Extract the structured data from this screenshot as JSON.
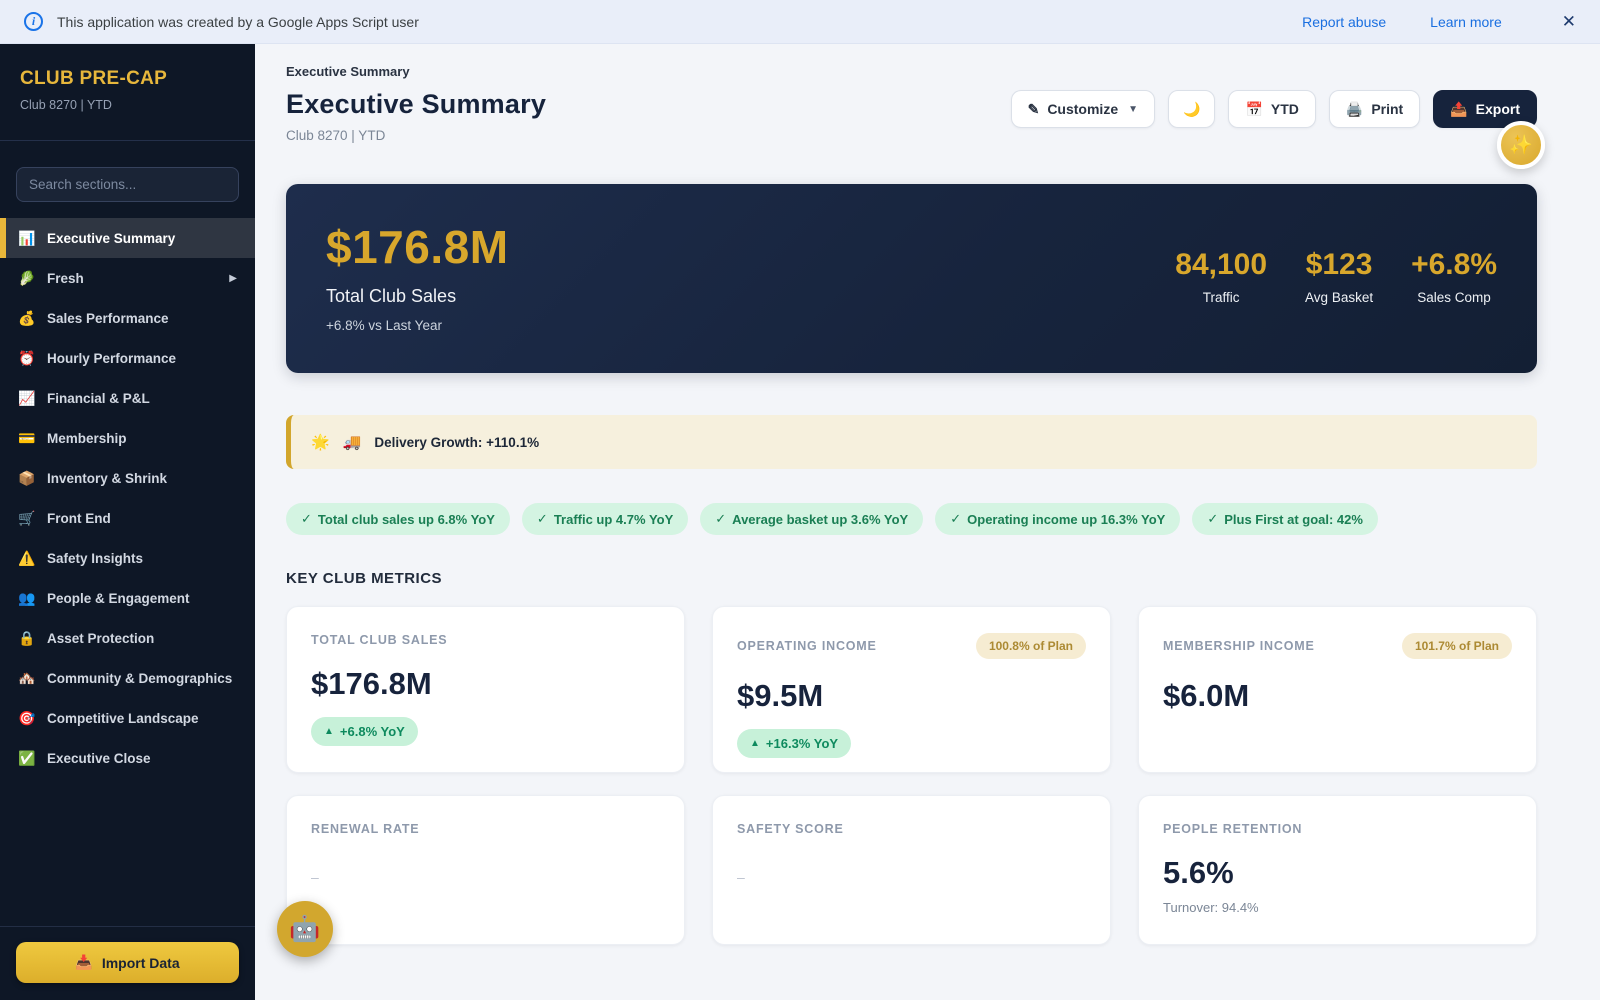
{
  "banner": {
    "info_glyph": "i",
    "text": "This application was created by a Google Apps Script user",
    "report_abuse": "Report abuse",
    "learn_more": "Learn more",
    "close_glyph": "✕"
  },
  "sidebar": {
    "title": "CLUB PRE-CAP",
    "subtitle": "Club 8270 | YTD",
    "search_placeholder": "Search sections...",
    "items": [
      {
        "icon": "📊",
        "label": "Executive Summary",
        "active": true
      },
      {
        "icon": "🥬",
        "label": "Fresh",
        "has_submenu": true,
        "caret": "▶"
      },
      {
        "icon": "💰",
        "label": "Sales Performance"
      },
      {
        "icon": "⏰",
        "label": "Hourly Performance"
      },
      {
        "icon": "📈",
        "label": "Financial & P&L"
      },
      {
        "icon": "💳",
        "label": "Membership"
      },
      {
        "icon": "📦",
        "label": "Inventory & Shrink"
      },
      {
        "icon": "🛒",
        "label": "Front End"
      },
      {
        "icon": "⚠️",
        "label": "Safety Insights"
      },
      {
        "icon": "👥",
        "label": "People & Engagement"
      },
      {
        "icon": "🔒",
        "label": "Asset Protection"
      },
      {
        "icon": "🏘️",
        "label": "Community & Demographics"
      },
      {
        "icon": "🎯",
        "label": "Competitive Landscape"
      },
      {
        "icon": "✅",
        "label": "Executive Close"
      }
    ],
    "import_button": {
      "icon": "📥",
      "label": "Import Data"
    }
  },
  "header": {
    "breadcrumb": "Executive Summary",
    "title": "Executive Summary",
    "subtitle": "Club 8270 | YTD",
    "customize": {
      "icon": "✎",
      "label": "Customize",
      "caret": "▼"
    },
    "theme_button": {
      "icon": "🌙"
    },
    "period_button": {
      "icon": "📅",
      "label": "YTD"
    },
    "print_button": {
      "icon": "🖨️",
      "label": "Print"
    },
    "export_button": {
      "icon": "📤",
      "label": "Export"
    },
    "sparkle_fab_icon": "✨"
  },
  "hero": {
    "value": "$176.8M",
    "label": "Total Club Sales",
    "sub": "+6.8% vs Last Year",
    "stats": [
      {
        "value": "84,100",
        "label": "Traffic"
      },
      {
        "value": "$123",
        "label": "Avg Basket"
      },
      {
        "value": "+6.8%",
        "label": "Sales Comp"
      }
    ]
  },
  "alert": {
    "star_icon": "🌟",
    "truck_icon": "🚚",
    "text": "Delivery Growth: +110.1%"
  },
  "highlights": {
    "check_glyph": "✓",
    "items": [
      "Total club sales up 6.8% YoY",
      "Traffic up 4.7% YoY",
      "Average basket up 3.6% YoY",
      "Operating income up 16.3% YoY",
      "Plus First at goal: 42%"
    ]
  },
  "metrics": {
    "section_title": "KEY CLUB METRICS",
    "delta_arrow": "▲",
    "cards": [
      {
        "label": "TOTAL CLUB SALES",
        "value": "$176.8M",
        "delta": "+6.8% YoY"
      },
      {
        "label": "OPERATING INCOME",
        "badge": "100.8% of Plan",
        "value": "$9.5M",
        "delta": "+16.3% YoY"
      },
      {
        "label": "MEMBERSHIP INCOME",
        "badge": "101.7% of Plan",
        "value": "$6.0M"
      },
      {
        "label": "RENEWAL RATE",
        "empty_value": "–"
      },
      {
        "label": "SAFETY SCORE",
        "empty_value": "–"
      },
      {
        "label": "PEOPLE RETENTION",
        "value": "5.6%",
        "sub": "Turnover: 94.4%"
      }
    ]
  },
  "fabs": {
    "assistant_icon": "🤖"
  },
  "colors": {
    "accent_gold": "#e2b13c",
    "navy": "#16233c",
    "sidebar_bg": "#0e1726",
    "banner_bg": "#e9eef9",
    "link_blue": "#1a6fe0",
    "pill_green_bg": "#d4f4e2",
    "pill_green_text": "#1a7f54",
    "badge_cream_bg": "#f6ecd2",
    "badge_gold_text": "#ac8a33"
  }
}
